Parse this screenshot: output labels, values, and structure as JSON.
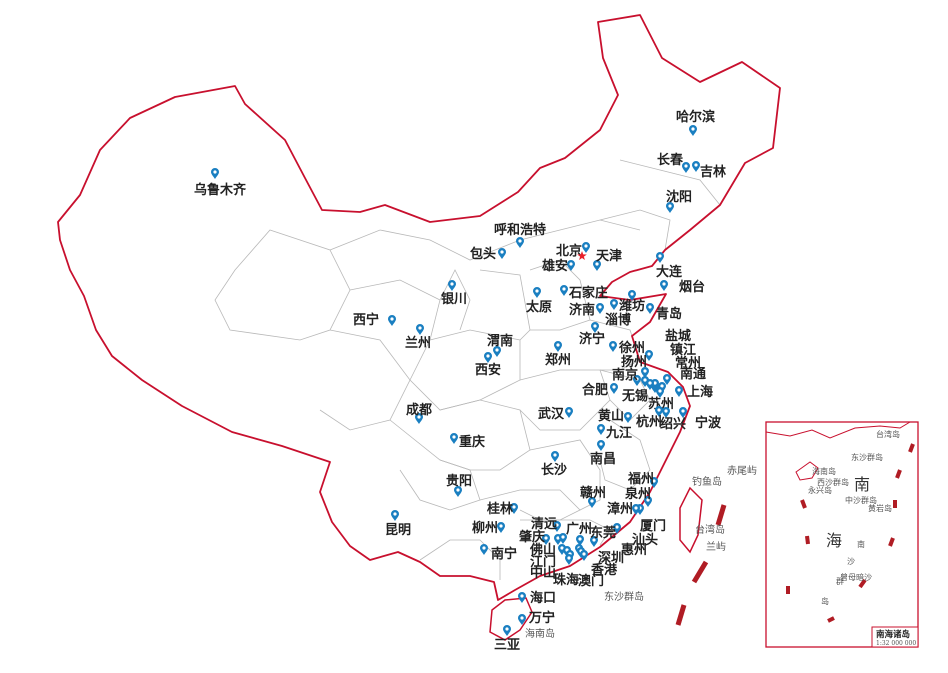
{
  "colors": {
    "border": "#c8102e",
    "province": "#b8b8b8",
    "marker": "#1a7fc1",
    "capital_star": "#e8202a"
  },
  "map": {
    "capital_icon": "star-icon",
    "marker_icon": "map-pin-icon",
    "cities": [
      "哈尔滨",
      "长春",
      "吉林",
      "沈阳",
      "乌鲁木齐",
      "呼和浩特",
      "包头",
      "北京",
      "天津",
      "雄安",
      "大连",
      "烟台",
      "银川",
      "石家庄",
      "太原",
      "潍坊",
      "济南",
      "淄博",
      "青岛",
      "西宁",
      "兰州",
      "济宁",
      "渭南",
      "西安",
      "郑州",
      "盐城",
      "徐州",
      "镇江",
      "扬州",
      "常州",
      "南京",
      "南通",
      "合肥",
      "无锡",
      "上海",
      "苏州",
      "成都",
      "武汉",
      "黄山",
      "杭州",
      "绍兴",
      "宁波",
      "重庆",
      "九江",
      "南昌",
      "长沙",
      "贵阳",
      "福州",
      "泉州",
      "赣州",
      "漳州",
      "桂林",
      "厦门",
      "汕头",
      "惠州",
      "昆明",
      "柳州",
      "清远",
      "广州",
      "东莞",
      "肇庆",
      "佛山",
      "南宁",
      "江门",
      "深圳",
      "中山",
      "香港",
      "珠海",
      "澳门",
      "海口",
      "万宁",
      "三亚"
    ],
    "sea_labels": [
      "钓鱼岛",
      "赤尾屿",
      "台湾岛",
      "兰屿",
      "东沙群岛",
      "海南岛"
    ]
  },
  "inset": {
    "labels": [
      "台湾岛",
      "东沙群岛",
      "海南岛",
      "西沙群岛",
      "永兴岛",
      "中沙群岛",
      "黄岩岛",
      "曾母暗沙"
    ],
    "big_labels": [
      "南",
      "海"
    ],
    "nansha": [
      "南",
      "沙",
      "群",
      "岛"
    ],
    "title": "南海诸岛",
    "scale": "1:32 000 000"
  }
}
